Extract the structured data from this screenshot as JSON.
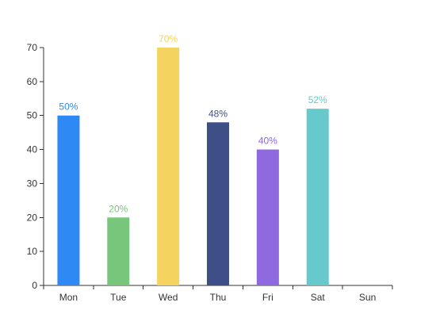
{
  "chart_data": {
    "type": "bar",
    "categories": [
      "Mon",
      "Tue",
      "Wed",
      "Thu",
      "Fri",
      "Sat",
      "Sun"
    ],
    "values": [
      50,
      20,
      70,
      48,
      40,
      52,
      0
    ],
    "data_labels": [
      "50%",
      "20%",
      "70%",
      "48%",
      "40%",
      "52%",
      ""
    ],
    "colors": [
      "#2F89F5",
      "#77C67B",
      "#F4D35E",
      "#3E4F88",
      "#8E69E0",
      "#66C9CB",
      "#ffffff"
    ],
    "y_ticks": [
      0,
      10,
      20,
      30,
      40,
      50,
      60,
      70
    ],
    "ylim": [
      0,
      70
    ],
    "grid": false,
    "axis_color": "#333333",
    "legend": "none"
  }
}
